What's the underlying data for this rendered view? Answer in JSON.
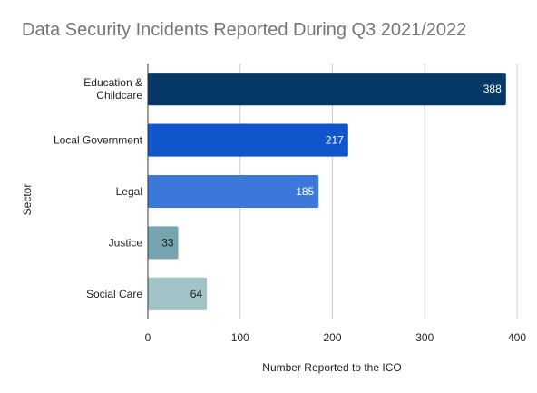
{
  "chart_data": {
    "type": "bar",
    "orientation": "horizontal",
    "title": "Data Security Incidents Reported During Q3 2021/2022",
    "xlabel": "Number Reported to the ICO",
    "ylabel": "Sector",
    "categories": [
      "Education & Childcare",
      "Local Government",
      "Legal",
      "Justice",
      "Social Care"
    ],
    "category_lines": [
      [
        "Education &",
        "Childcare"
      ],
      [
        "Local Government"
      ],
      [
        "Legal"
      ],
      [
        "Justice"
      ],
      [
        "Social Care"
      ]
    ],
    "values": [
      388,
      217,
      185,
      33,
      64
    ],
    "data_labels": [
      "388",
      "217",
      "185",
      "33",
      "64"
    ],
    "colors": [
      "#063966",
      "#1155cc",
      "#3c78d8",
      "#76a5af",
      "#a2c4c9"
    ],
    "label_colors": [
      "#ffffff",
      "#ffffff",
      "#ffffff",
      "#222222",
      "#222222"
    ],
    "xlim": [
      0,
      400
    ],
    "xticks": [
      0,
      100,
      200,
      300,
      400
    ],
    "grid": true,
    "legend": "none"
  }
}
